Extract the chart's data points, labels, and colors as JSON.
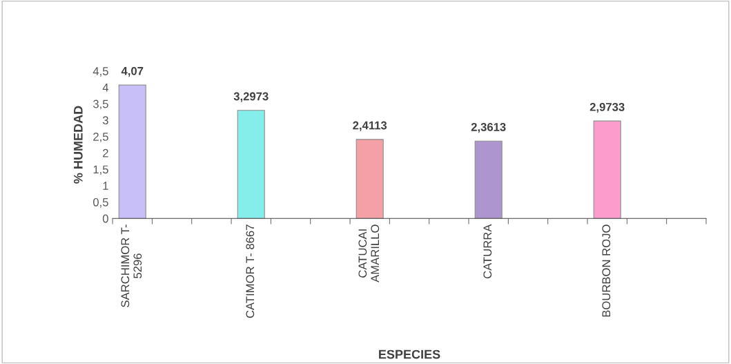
{
  "chart_data": {
    "type": "bar",
    "xlabel": "ESPECIES",
    "ylabel": "% HUMEDAD",
    "categories": [
      "SARCHIMOR T-\n5296",
      null,
      null,
      "CATIMOR T- 8667",
      null,
      null,
      "CATUCAI\nAMARILLO",
      null,
      null,
      "CATURRA",
      null,
      null,
      "BOURBON ROJO",
      null,
      null
    ],
    "values": [
      4.07,
      null,
      null,
      3.2973,
      null,
      null,
      2.4113,
      null,
      null,
      2.3613,
      null,
      null,
      2.9733,
      null,
      null
    ],
    "value_labels": [
      "4,07",
      null,
      null,
      "3,2973",
      null,
      null,
      "2,4113",
      null,
      null,
      "2,3613",
      null,
      null,
      "2,9733",
      null,
      null
    ],
    "colors": [
      "#c8bef8",
      null,
      null,
      "#86eeea",
      null,
      null,
      "#f4a0a6",
      null,
      null,
      "#ad96d0",
      null,
      null,
      "#fb9ccc",
      null,
      null
    ],
    "ylim": [
      0,
      4.5
    ],
    "yticks": [
      0,
      {
        "value": 0.5,
        "label": "0,5"
      },
      1,
      {
        "value": 1.5,
        "label": "1,5"
      },
      2,
      {
        "value": 2.5,
        "label": "2,5"
      },
      3,
      {
        "value": 3.5,
        "label": "3,5"
      },
      4,
      {
        "value": 4.5,
        "label": "4,5"
      }
    ],
    "grid": false,
    "legend": false
  }
}
